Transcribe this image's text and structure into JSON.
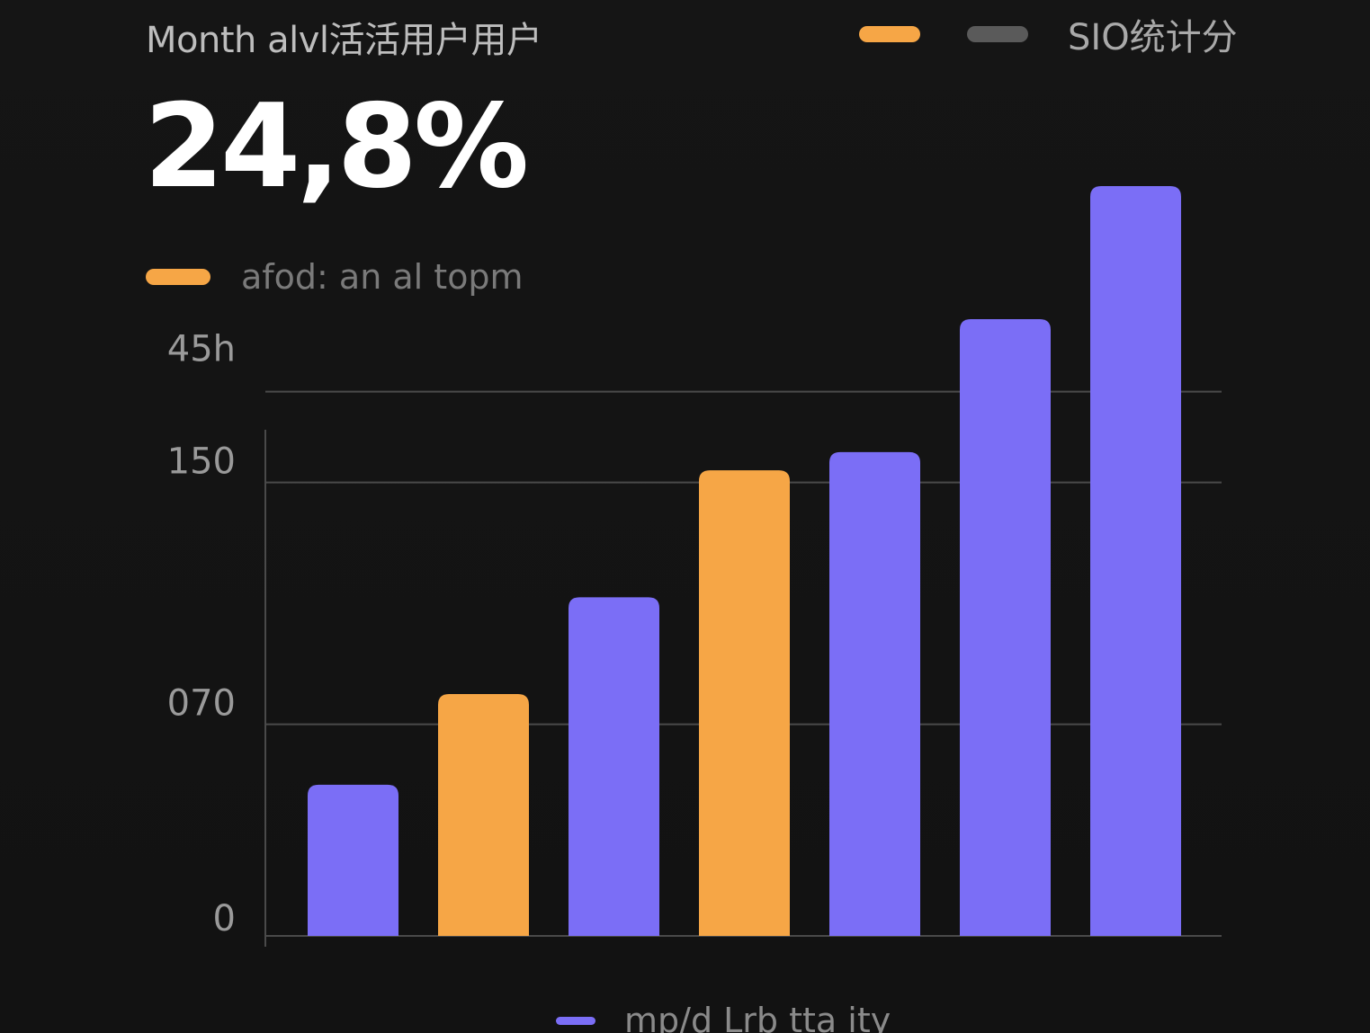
{
  "header": {
    "title": "Month alvl活活用户用户",
    "legend_text": "SIO统计分",
    "big_value": "24,8%"
  },
  "sub_legend": {
    "text": "afod: an al topm"
  },
  "bottom_legend": {
    "text": "mp/d Lrb tta ity"
  },
  "colors": {
    "background": "#141414",
    "purple": "#7b6ef6",
    "orange": "#f6a646",
    "gray": "#5a5a5a",
    "grid": "#4a4a4a"
  },
  "chart_data": {
    "type": "bar",
    "title": "Month alvl活活用户用户",
    "categories": [
      "",
      "",
      "",
      "",
      "",
      "",
      ""
    ],
    "values": [
      50,
      80,
      112,
      154,
      160,
      204,
      248
    ],
    "bar_colors": [
      "#7b6ef6",
      "#f6a646",
      "#7b6ef6",
      "#f6a646",
      "#7b6ef6",
      "#7b6ef6",
      "#7b6ef6"
    ],
    "y_ticks": [
      {
        "value": 0,
        "label": "0"
      },
      {
        "value": 70,
        "label": "070"
      },
      {
        "value": 150,
        "label": "150"
      },
      {
        "value": 180,
        "label": "45h"
      }
    ],
    "ylim": [
      0,
      248
    ],
    "grid": true
  }
}
